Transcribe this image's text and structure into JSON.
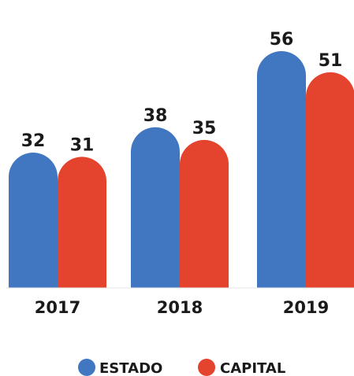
{
  "chart_data": {
    "type": "bar",
    "categories": [
      "2017",
      "2018",
      "2019"
    ],
    "series": [
      {
        "name": "ESTADO",
        "values": [
          32,
          38,
          56
        ],
        "color": "#4177c1"
      },
      {
        "name": "CAPITAL",
        "values": [
          31,
          35,
          51
        ],
        "color": "#e4432d"
      }
    ],
    "ylim": [
      0,
      60
    ],
    "legend_position": "bottom",
    "grid": false
  }
}
